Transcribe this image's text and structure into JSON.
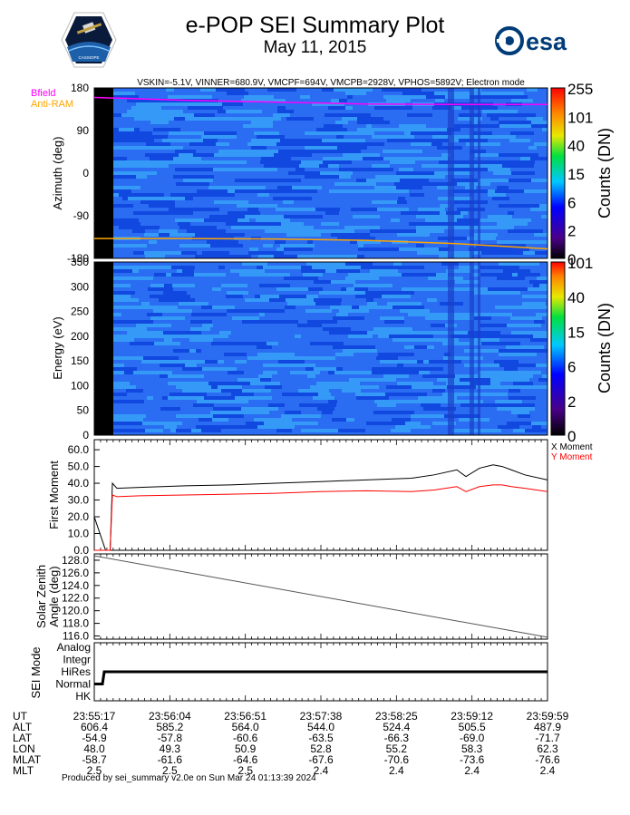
{
  "header": {
    "title": "e-POP SEI Summary Plot",
    "date": "May 11, 2015",
    "settings": "VSKIN=-5.1V, VINNER=680.9V, VMCPF=694V, VMCPB=2928V, VPHOS=5892V; Electron mode",
    "logo_left_text": "CASSIOPE",
    "logo_right_text": "esa"
  },
  "footer": "Produced by sei_summary v2.0e on Sun Mar 24 01:13:39 2024",
  "colors": {
    "bfield": "#ff00ff",
    "antiram": "#ffa500",
    "x_moment": "#000000",
    "y_moment": "#ff0000",
    "spectrogram_base": "#2a6cf2",
    "spectrogram_low": "#0a3cd8",
    "spectrogram_high": "#3aaaf8"
  },
  "chart_data": [
    {
      "type": "heatmap",
      "panel": "azimuth",
      "ylabel": "Azimuth (deg)",
      "yticks": [
        "180",
        "90",
        "0",
        "-90",
        "-180"
      ],
      "ylim": [
        -180,
        180
      ],
      "colorbar_label": "Counts (DN)",
      "colorbar_ticks": [
        "255",
        "101",
        "40",
        "15",
        "6",
        "2",
        "0"
      ],
      "legend": [
        "Bfield",
        "Anti-RAM"
      ],
      "series": [
        {
          "name": "Bfield",
          "x": [
            0,
            0.2,
            0.4,
            0.6,
            0.8,
            1.0
          ],
          "values": [
            160,
            154,
            150,
            146,
            145,
            145
          ]
        },
        {
          "name": "Anti-RAM",
          "x": [
            0,
            0.2,
            0.4,
            0.6,
            0.8,
            1.0
          ],
          "values": [
            -138,
            -138,
            -139,
            -142,
            -149,
            -160
          ]
        }
      ]
    },
    {
      "type": "heatmap",
      "panel": "energy",
      "ylabel": "Energy (eV)",
      "yticks": [
        "350",
        "300",
        "250",
        "200",
        "150",
        "100",
        "50",
        "0"
      ],
      "ylim": [
        0,
        350
      ],
      "colorbar_label": "Counts (DN)",
      "colorbar_ticks": [
        "101",
        "40",
        "15",
        "6",
        "2",
        "0"
      ]
    },
    {
      "type": "line",
      "panel": "first_moment",
      "ylabel": "First Moment",
      "yticks": [
        "60.0",
        "50.0",
        "40.0",
        "30.0",
        "20.0",
        "10.0",
        "0.0"
      ],
      "ylim": [
        0,
        66
      ],
      "legend": [
        "X Moment",
        "Y Moment"
      ],
      "series": [
        {
          "name": "X Moment",
          "x": [
            0,
            0.025,
            0.035,
            0.04,
            0.05,
            0.1,
            0.2,
            0.3,
            0.4,
            0.5,
            0.6,
            0.7,
            0.75,
            0.8,
            0.82,
            0.85,
            0.88,
            0.9,
            0.92,
            0.95,
            1.0
          ],
          "values": [
            20,
            0,
            0,
            40,
            37,
            37.5,
            38.5,
            39,
            40,
            41,
            42,
            43,
            45,
            48,
            44,
            49,
            51,
            50,
            48,
            45,
            42
          ]
        },
        {
          "name": "Y Moment",
          "x": [
            0,
            0.025,
            0.035,
            0.04,
            0.05,
            0.1,
            0.2,
            0.3,
            0.4,
            0.5,
            0.6,
            0.7,
            0.75,
            0.8,
            0.82,
            0.85,
            0.88,
            0.9,
            0.92,
            0.95,
            1.0
          ],
          "values": [
            0,
            0,
            0,
            33,
            32,
            32.5,
            33,
            33.5,
            34,
            35,
            35.5,
            35,
            36,
            38,
            35,
            38,
            39,
            39,
            38,
            37,
            35
          ]
        }
      ]
    },
    {
      "type": "line",
      "panel": "solar_zenith",
      "ylabel": "Solar Zenith Angle (deg)",
      "yticks": [
        "128.0",
        "126.0",
        "124.0",
        "122.0",
        "120.0",
        "118.0",
        "116.0"
      ],
      "ylim": [
        115.5,
        129
      ],
      "series": [
        {
          "name": "SZA",
          "x": [
            0,
            1
          ],
          "values": [
            128.7,
            115.8
          ]
        }
      ]
    },
    {
      "type": "line",
      "panel": "sei_mode",
      "ylabel": "SEI Mode",
      "categories": [
        "Analog",
        "Integr",
        "HiRes",
        "Normal",
        "HK"
      ],
      "series": [
        {
          "name": "Mode",
          "x": [
            0,
            0.018,
            0.022,
            1.0
          ],
          "values": [
            "Normal",
            "Normal",
            "HiRes",
            "HiRes"
          ]
        }
      ]
    }
  ],
  "ephemeris": {
    "row_labels": [
      "UT",
      "ALT",
      "LAT",
      "LON",
      "MLAT",
      "MLT"
    ],
    "columns": [
      [
        "23:55:17",
        "606.4",
        "-54.9",
        "48.0",
        "-58.7",
        "2.5"
      ],
      [
        "23:56:04",
        "585.2",
        "-57.8",
        "49.3",
        "-61.6",
        "2.5"
      ],
      [
        "23:56:51",
        "564.0",
        "-60.6",
        "50.9",
        "-64.6",
        "2.5"
      ],
      [
        "23:57:38",
        "544.0",
        "-63.5",
        "52.8",
        "-67.6",
        "2.4"
      ],
      [
        "23:58:25",
        "524.4",
        "-66.3",
        "55.2",
        "-70.6",
        "2.4"
      ],
      [
        "23:59:12",
        "505.5",
        "-69.0",
        "58.3",
        "-73.6",
        "2.4"
      ],
      [
        "23:59:59",
        "487.9",
        "-71.7",
        "62.3",
        "-76.6",
        "2.4"
      ]
    ]
  }
}
